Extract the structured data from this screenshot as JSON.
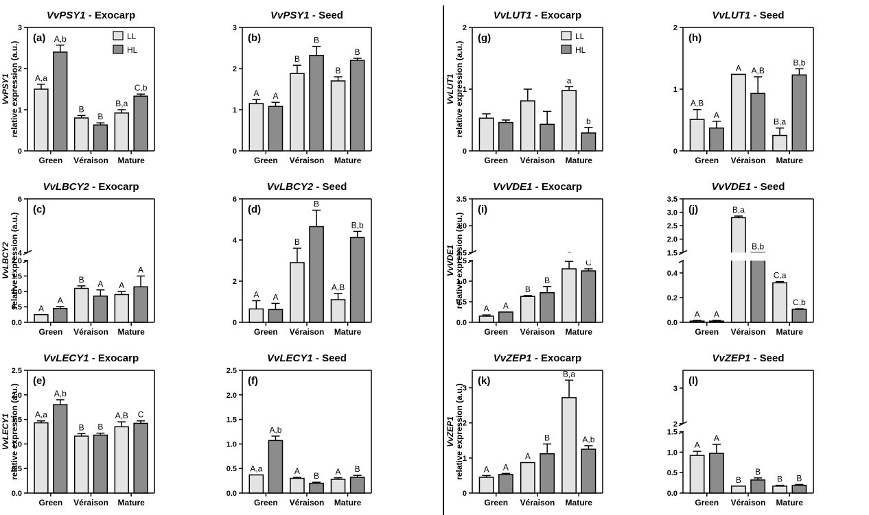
{
  "legend": {
    "ll": "LL",
    "hl": "HL",
    "ll_color": "#e3e3e3",
    "hl_color": "#8c8c8c"
  },
  "chart_data": [
    {
      "id": "a",
      "type": "bar",
      "title_gene": "VvPSY1",
      "title_tissue": " - Exocarp",
      "panel_label": "(a)",
      "ylabel_gene": "VvPSY1",
      "ylabel": "relative expression (a.u.)",
      "categories": [
        "Green",
        "Véraison",
        "Mature"
      ],
      "ylim": [
        0,
        3
      ],
      "yticks": [
        "0",
        "1",
        "2",
        "3"
      ],
      "legend": true,
      "series": [
        {
          "name": "LL",
          "values": [
            1.5,
            0.8,
            0.92
          ],
          "errors": [
            0.12,
            0.06,
            0.08
          ],
          "labels": [
            "A,a",
            "B",
            "B,a"
          ]
        },
        {
          "name": "HL",
          "values": [
            2.4,
            0.63,
            1.33
          ],
          "errors": [
            0.17,
            0.05,
            0.05
          ],
          "labels": [
            "A,b",
            "B",
            "C,b"
          ]
        }
      ]
    },
    {
      "id": "b",
      "type": "bar",
      "title_gene": "VvPSY1",
      "title_tissue": " - Seed",
      "panel_label": "(b)",
      "categories": [
        "Green",
        "Véraison",
        "Mature"
      ],
      "ylim": [
        0,
        3
      ],
      "yticks": [
        "0",
        "1",
        "2",
        "3"
      ],
      "series": [
        {
          "name": "LL",
          "values": [
            1.15,
            1.88,
            1.7
          ],
          "errors": [
            0.1,
            0.2,
            0.1
          ],
          "labels": [
            "A",
            "B",
            "B"
          ]
        },
        {
          "name": "HL",
          "values": [
            1.08,
            2.32,
            2.2
          ],
          "errors": [
            0.1,
            0.22,
            0.05
          ],
          "labels": [
            "A",
            "B",
            "B"
          ]
        }
      ]
    },
    {
      "id": "c",
      "type": "bar",
      "title_gene": "VvLBCY2",
      "title_tissue": " - Exocarp",
      "panel_label": "(c)",
      "ylabel_gene": "VvLBCY2",
      "ylabel": "relative expression (a.u.)",
      "categories": [
        "Green",
        "Véraison",
        "Mature"
      ],
      "ylim": [
        0,
        6
      ],
      "yticks": [
        "0.0",
        "0.5",
        "1.0",
        "1.5",
        "2.0",
        "4",
        "6"
      ],
      "broken_axis": {
        "lower": [
          0,
          2
        ],
        "upper": [
          4,
          6
        ]
      },
      "series": [
        {
          "name": "LL",
          "values": [
            0.25,
            1.1,
            0.9
          ],
          "errors": [
            0,
            0.08,
            0.1
          ],
          "labels": [
            "A",
            "B",
            "A"
          ]
        },
        {
          "name": "HL",
          "values": [
            0.45,
            0.85,
            1.15
          ],
          "errors": [
            0.06,
            0.2,
            0.35
          ],
          "labels": [
            "A",
            "A",
            "A"
          ]
        }
      ]
    },
    {
      "id": "d",
      "type": "bar",
      "title_gene": "VvLBCY2",
      "title_tissue": " - Seed",
      "panel_label": "(d)",
      "categories": [
        "Green",
        "Véraison",
        "Mature"
      ],
      "ylim": [
        0,
        6
      ],
      "yticks": [
        "0",
        "2",
        "4",
        "6"
      ],
      "series": [
        {
          "name": "LL",
          "values": [
            0.65,
            2.9,
            1.1
          ],
          "errors": [
            0.4,
            0.7,
            0.3
          ],
          "labels": [
            "A",
            "B",
            "A,B"
          ]
        },
        {
          "name": "HL",
          "values": [
            0.62,
            4.65,
            4.12
          ],
          "errors": [
            0.3,
            0.8,
            0.3
          ],
          "labels": [
            "A",
            "B",
            "B,b"
          ]
        }
      ]
    },
    {
      "id": "e",
      "type": "bar",
      "title_gene": "VvLECY1",
      "title_tissue": " - Exocarp",
      "panel_label": "(e)",
      "ylabel_gene": "VvLECY1",
      "ylabel": "relative expression (a.u.)",
      "categories": [
        "Green",
        "Véraison",
        "Mature"
      ],
      "ylim": [
        0,
        2.5
      ],
      "yticks": [
        "0.0",
        "0.5",
        "1.0",
        "1.5",
        "2.0",
        "2.5"
      ],
      "series": [
        {
          "name": "LL",
          "values": [
            1.43,
            1.16,
            1.35
          ],
          "errors": [
            0.04,
            0.05,
            0.1
          ],
          "labels": [
            "A,a",
            "B",
            "A,B"
          ]
        },
        {
          "name": "HL",
          "values": [
            1.8,
            1.18,
            1.42
          ],
          "errors": [
            0.1,
            0.04,
            0.05
          ],
          "labels": [
            "A,b",
            "B",
            "C"
          ]
        }
      ]
    },
    {
      "id": "f",
      "type": "bar",
      "title_gene": "VvLECY1",
      "title_tissue": " - Seed",
      "panel_label": "(f)",
      "categories": [
        "Green",
        "Véraison",
        "Mature"
      ],
      "ylim": [
        0,
        2.5
      ],
      "yticks": [
        "0.0",
        "0.5",
        "1.0",
        "1.5",
        "2.0",
        "2.5"
      ],
      "series": [
        {
          "name": "LL",
          "values": [
            0.37,
            0.3,
            0.28
          ],
          "errors": [
            0,
            0.02,
            0.03
          ],
          "labels": [
            "A,a",
            "A",
            "A"
          ]
        },
        {
          "name": "HL",
          "values": [
            1.07,
            0.2,
            0.32
          ],
          "errors": [
            0.09,
            0.02,
            0.04
          ],
          "labels": [
            "A,b",
            "B",
            "B"
          ]
        }
      ]
    },
    {
      "id": "g",
      "type": "bar",
      "title_gene": "VvLUT1",
      "title_tissue": " - Exocarp",
      "panel_label": "(g)",
      "ylabel_gene": "VvLUT1",
      "ylabel": "relative expression (a.u.)",
      "categories": [
        "Green",
        "Véraison",
        "Mature"
      ],
      "ylim": [
        0,
        2
      ],
      "yticks": [
        "0",
        "1",
        "2"
      ],
      "legend": true,
      "series": [
        {
          "name": "LL",
          "values": [
            0.53,
            0.81,
            0.98
          ],
          "errors": [
            0.07,
            0.19,
            0.06
          ],
          "labels": [
            "",
            "",
            "a"
          ]
        },
        {
          "name": "HL",
          "values": [
            0.46,
            0.43,
            0.29
          ],
          "errors": [
            0.04,
            0.21,
            0.09
          ],
          "labels": [
            "",
            "",
            "b"
          ]
        }
      ]
    },
    {
      "id": "h",
      "type": "bar",
      "title_gene": "VvLUT1",
      "title_tissue": " - Seed",
      "panel_label": "(h)",
      "categories": [
        "Green",
        "Véraison",
        "Mature"
      ],
      "ylim": [
        0,
        2
      ],
      "yticks": [
        "0",
        "1",
        "2"
      ],
      "series": [
        {
          "name": "LL",
          "values": [
            0.51,
            1.24,
            0.25
          ],
          "errors": [
            0.16,
            0,
            0.12
          ],
          "labels": [
            "A,B",
            "A",
            "B,a"
          ]
        },
        {
          "name": "HL",
          "values": [
            0.37,
            0.93,
            1.23
          ],
          "errors": [
            0.11,
            0.27,
            0.1
          ],
          "labels": [
            "A",
            "A,B",
            "B,b"
          ]
        }
      ]
    },
    {
      "id": "i",
      "type": "bar",
      "title_gene": "VvVDE1",
      "title_tissue": " - Exocarp",
      "panel_label": "(i)",
      "ylabel_gene": "VvVDE1",
      "ylabel": "relative expression (a.u.)",
      "categories": [
        "Green",
        "Véraison",
        "Mature"
      ],
      "ylim": [
        0,
        3.5
      ],
      "yticks": [
        "0.0",
        "0.5",
        "1.0",
        "1.5",
        "2.5",
        "3.0",
        "3.5"
      ],
      "broken_axis": {
        "lower": [
          0,
          1.5
        ],
        "upper": [
          2.5,
          3.5
        ]
      },
      "series": [
        {
          "name": "LL",
          "values": [
            0.15,
            0.63,
            1.3
          ],
          "errors": [
            0.03,
            0.02,
            0.18
          ],
          "labels": [
            "A",
            "B",
            "C"
          ]
        },
        {
          "name": "HL",
          "values": [
            0.25,
            0.72,
            1.25
          ],
          "errors": [
            0,
            0.15,
            0.05
          ],
          "labels": [
            "A",
            "B",
            "C"
          ]
        }
      ]
    },
    {
      "id": "j",
      "type": "bar",
      "title_gene": "VvVDE1",
      "title_tissue": " - Seed",
      "panel_label": "(j)",
      "categories": [
        "Green",
        "Véraison",
        "Mature"
      ],
      "ylim": [
        0,
        3.5
      ],
      "yticks": [
        "0.0",
        "0.2",
        "0.4",
        "1.5",
        "2.0",
        "2.5",
        "3.0",
        "3.5"
      ],
      "broken_axis": {
        "lower": [
          0,
          0.5
        ],
        "upper": [
          1.5,
          3.5
        ]
      },
      "series": [
        {
          "name": "LL",
          "values": [
            0.01,
            2.8,
            0.32
          ],
          "errors": [
            0.005,
            0.06,
            0.01
          ],
          "labels": [
            "A",
            "B,a",
            "C,a"
          ]
        },
        {
          "name": "HL",
          "values": [
            0.01,
            1.5,
            0.105
          ],
          "errors": [
            0.005,
            0,
            0.005
          ],
          "labels": [
            "A",
            "B,b",
            "C,b"
          ]
        }
      ]
    },
    {
      "id": "k",
      "type": "bar",
      "title_gene": "VvZEP1",
      "title_tissue": " - Exocarp",
      "panel_label": "(k)",
      "ylabel_gene": "VvZEP1",
      "ylabel": "relative expression (a.u.)",
      "categories": [
        "Green",
        "Véraison",
        "Mature"
      ],
      "ylim": [
        0,
        3.5
      ],
      "yticks": [
        "0",
        "1",
        "2",
        "3"
      ],
      "series": [
        {
          "name": "LL",
          "values": [
            0.45,
            0.87,
            2.72
          ],
          "errors": [
            0.05,
            0,
            0.5
          ],
          "labels": [
            "A",
            "A",
            "B,a"
          ]
        },
        {
          "name": "HL",
          "values": [
            0.53,
            1.12,
            1.25
          ],
          "errors": [
            0.03,
            0.28,
            0.1
          ],
          "labels": [
            "A",
            "B",
            "A,b"
          ]
        }
      ]
    },
    {
      "id": "l",
      "type": "bar",
      "title_gene": "VvZEP1",
      "title_tissue": " - Seed",
      "panel_label": "(l)",
      "categories": [
        "Green",
        "Véraison",
        "Mature"
      ],
      "ylim": [
        0,
        3.5
      ],
      "yticks": [
        "0.0",
        "0.5",
        "1.0",
        "1.5",
        "2",
        "3"
      ],
      "broken_axis": {
        "lower": [
          0,
          1.5
        ],
        "upper": [
          2,
          3.5
        ]
      },
      "series": [
        {
          "name": "LL",
          "values": [
            0.92,
            0.17,
            0.17
          ],
          "errors": [
            0.1,
            0,
            0.02
          ],
          "labels": [
            "A",
            "B",
            "B"
          ]
        },
        {
          "name": "HL",
          "values": [
            0.97,
            0.32,
            0.19
          ],
          "errors": [
            0.22,
            0.05,
            0.02
          ],
          "labels": [
            "A",
            "B",
            "B"
          ]
        }
      ]
    }
  ]
}
